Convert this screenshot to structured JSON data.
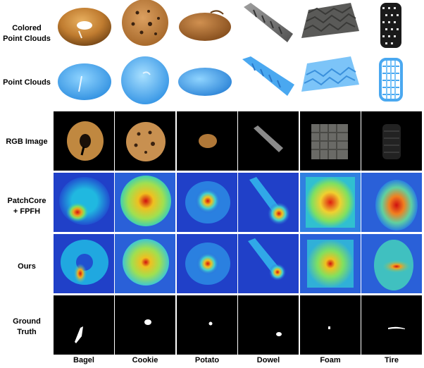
{
  "figure": {
    "row_labels": [
      "Colored\nPoint Clouds",
      "Point Clouds",
      "RGB Image",
      "PatchCore\n+ FPFH",
      "Ours",
      "Ground\nTruth"
    ],
    "columns": [
      "Bagel",
      "Cookie",
      "Potato",
      "Dowel",
      "Foam",
      "Tire"
    ]
  }
}
